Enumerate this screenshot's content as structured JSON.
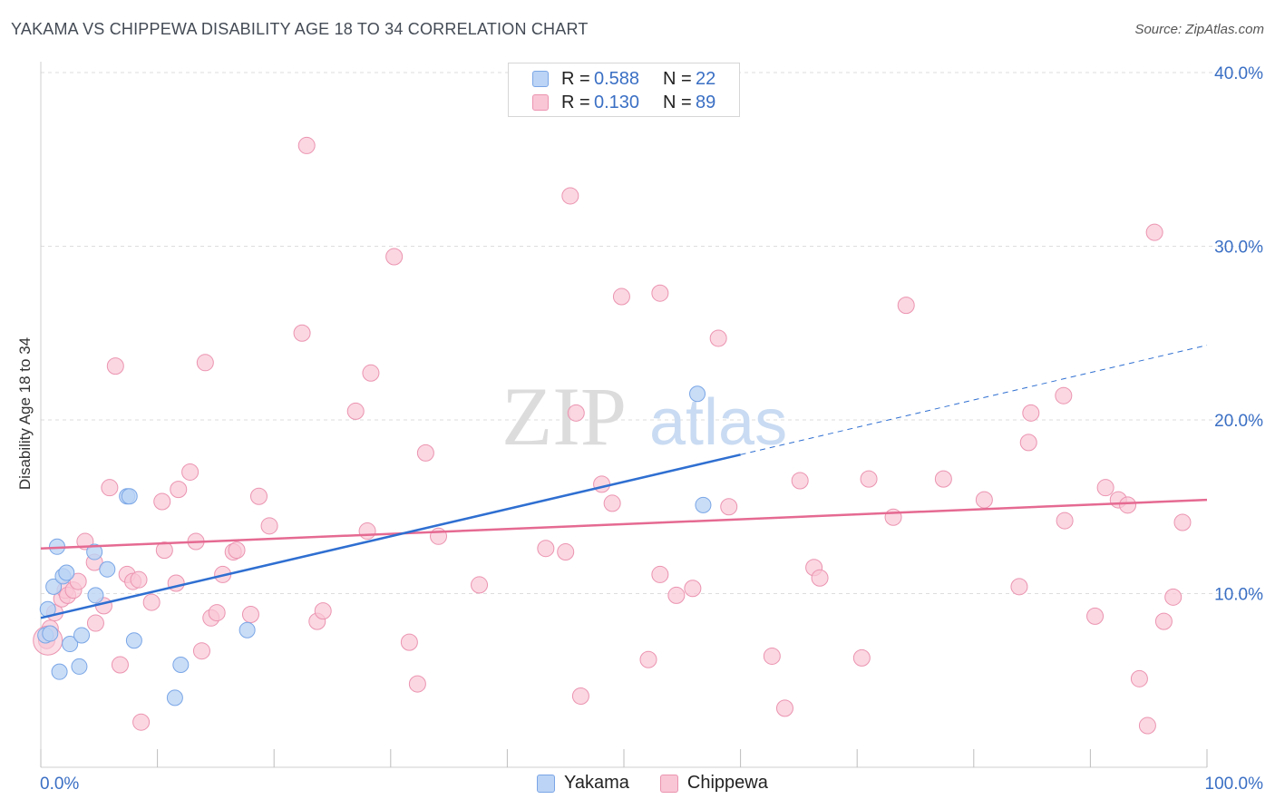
{
  "header": {
    "title": "YAKAMA VS CHIPPEWA DISABILITY AGE 18 TO 34 CORRELATION CHART",
    "source": "Source: ZipAtlas.com"
  },
  "watermark": {
    "zip": "ZIP",
    "atlas": "atlas"
  },
  "legend": {
    "rows": [
      {
        "r_label": "R =",
        "r_value": "0.588",
        "n_label": "N =",
        "n_value": "22"
      },
      {
        "r_label": "R =",
        "r_value": "0.130",
        "n_label": "N =",
        "n_value": "89"
      }
    ]
  },
  "bottom_legend": {
    "yakama": "Yakama",
    "chippewa": "Chippewa"
  },
  "colors": {
    "yakama_fill": "#bcd4f5",
    "yakama_stroke": "#7aa6e6",
    "yakama_line": "#2f6fd1",
    "chippewa_fill": "#f9c6d6",
    "chippewa_stroke": "#eb94b0",
    "chippewa_line": "#e56a92",
    "tick_label": "#3a6fc4",
    "grid": "#dddddd"
  },
  "chart_data": {
    "type": "scatter",
    "title": "YAKAMA VS CHIPPEWA DISABILITY AGE 18 TO 34 CORRELATION CHART",
    "xlabel": "",
    "ylabel": "Disability Age 18 to 34",
    "xlim": [
      0,
      100
    ],
    "ylim": [
      0,
      42
    ],
    "x_tick_labels": [
      "0.0%",
      "100.0%"
    ],
    "y_ticks": [
      10,
      20,
      30,
      40
    ],
    "y_tick_labels": [
      "10.0%",
      "20.0%",
      "30.0%",
      "40.0%"
    ],
    "grid": true,
    "legend_position": "top-center",
    "series": [
      {
        "name": "Yakama",
        "r": 0.588,
        "n": 22,
        "points": [
          [
            0.4,
            7.6
          ],
          [
            0.6,
            9.1
          ],
          [
            0.8,
            7.7
          ],
          [
            1.1,
            10.4
          ],
          [
            1.4,
            12.7
          ],
          [
            1.6,
            5.5
          ],
          [
            1.9,
            11.0
          ],
          [
            2.2,
            11.2
          ],
          [
            2.5,
            7.1
          ],
          [
            3.3,
            5.8
          ],
          [
            3.5,
            7.6
          ],
          [
            4.6,
            12.4
          ],
          [
            4.7,
            9.9
          ],
          [
            5.7,
            11.4
          ],
          [
            7.4,
            15.6
          ],
          [
            7.6,
            15.6
          ],
          [
            8.0,
            7.3
          ],
          [
            11.5,
            4.0
          ],
          [
            12.0,
            5.9
          ],
          [
            17.7,
            7.9
          ],
          [
            56.8,
            15.1
          ],
          [
            56.3,
            21.5
          ]
        ],
        "trend": {
          "x_start": 0,
          "y_start": 8.6,
          "x_solid_end": 60,
          "y_solid_end": 18.0,
          "x_dash_end": 100,
          "y_dash_end": 24.3
        }
      },
      {
        "name": "Chippewa",
        "r": 0.13,
        "n": 89,
        "points": [
          [
            0.5,
            7.3
          ],
          [
            0.8,
            8.0
          ],
          [
            1.2,
            8.9
          ],
          [
            1.8,
            9.7
          ],
          [
            2.1,
            10.2
          ],
          [
            2.3,
            9.9
          ],
          [
            2.8,
            10.2
          ],
          [
            3.2,
            10.7
          ],
          [
            3.8,
            13.0
          ],
          [
            4.6,
            11.8
          ],
          [
            4.7,
            8.3
          ],
          [
            5.4,
            9.3
          ],
          [
            5.9,
            16.1
          ],
          [
            6.4,
            23.1
          ],
          [
            6.8,
            5.9
          ],
          [
            7.4,
            11.1
          ],
          [
            7.9,
            10.7
          ],
          [
            8.4,
            10.8
          ],
          [
            8.6,
            2.6
          ],
          [
            9.5,
            9.5
          ],
          [
            10.4,
            15.3
          ],
          [
            10.6,
            12.5
          ],
          [
            11.6,
            10.6
          ],
          [
            11.8,
            16.0
          ],
          [
            12.8,
            17.0
          ],
          [
            13.3,
            13.0
          ],
          [
            13.8,
            6.7
          ],
          [
            14.1,
            23.3
          ],
          [
            14.6,
            8.6
          ],
          [
            15.1,
            8.9
          ],
          [
            15.6,
            11.1
          ],
          [
            16.5,
            12.4
          ],
          [
            16.8,
            12.5
          ],
          [
            18.0,
            8.8
          ],
          [
            18.7,
            15.6
          ],
          [
            19.6,
            13.9
          ],
          [
            22.4,
            25.0
          ],
          [
            22.8,
            35.8
          ],
          [
            23.7,
            8.4
          ],
          [
            24.2,
            9.0
          ],
          [
            27.0,
            20.5
          ],
          [
            28.0,
            13.6
          ],
          [
            28.3,
            22.7
          ],
          [
            30.3,
            29.4
          ],
          [
            31.6,
            7.2
          ],
          [
            32.3,
            4.8
          ],
          [
            33.0,
            18.1
          ],
          [
            34.1,
            13.3
          ],
          [
            37.6,
            10.5
          ],
          [
            43.3,
            12.6
          ],
          [
            45.0,
            12.4
          ],
          [
            45.4,
            32.9
          ],
          [
            45.9,
            20.4
          ],
          [
            46.3,
            4.1
          ],
          [
            48.1,
            16.3
          ],
          [
            49.0,
            15.2
          ],
          [
            49.8,
            27.1
          ],
          [
            52.1,
            6.2
          ],
          [
            53.1,
            11.1
          ],
          [
            53.1,
            27.3
          ],
          [
            54.5,
            9.9
          ],
          [
            55.9,
            10.3
          ],
          [
            58.1,
            24.7
          ],
          [
            59.0,
            15.0
          ],
          [
            62.7,
            6.4
          ],
          [
            63.8,
            3.4
          ],
          [
            65.1,
            16.5
          ],
          [
            66.3,
            11.5
          ],
          [
            66.8,
            10.9
          ],
          [
            70.4,
            6.3
          ],
          [
            71.0,
            16.6
          ],
          [
            73.1,
            14.4
          ],
          [
            74.2,
            26.6
          ],
          [
            77.4,
            16.6
          ],
          [
            80.9,
            15.4
          ],
          [
            83.9,
            10.4
          ],
          [
            84.7,
            18.7
          ],
          [
            84.9,
            20.4
          ],
          [
            87.7,
            21.4
          ],
          [
            87.8,
            14.2
          ],
          [
            90.4,
            8.7
          ],
          [
            91.3,
            16.1
          ],
          [
            92.4,
            15.4
          ],
          [
            93.2,
            15.1
          ],
          [
            94.2,
            5.1
          ],
          [
            94.9,
            2.4
          ],
          [
            95.5,
            30.8
          ],
          [
            96.3,
            8.4
          ],
          [
            97.1,
            9.8
          ],
          [
            97.9,
            14.1
          ]
        ],
        "trend": {
          "x_start": 0,
          "y_start": 12.6,
          "x_end": 100,
          "y_end": 15.4
        }
      }
    ]
  }
}
